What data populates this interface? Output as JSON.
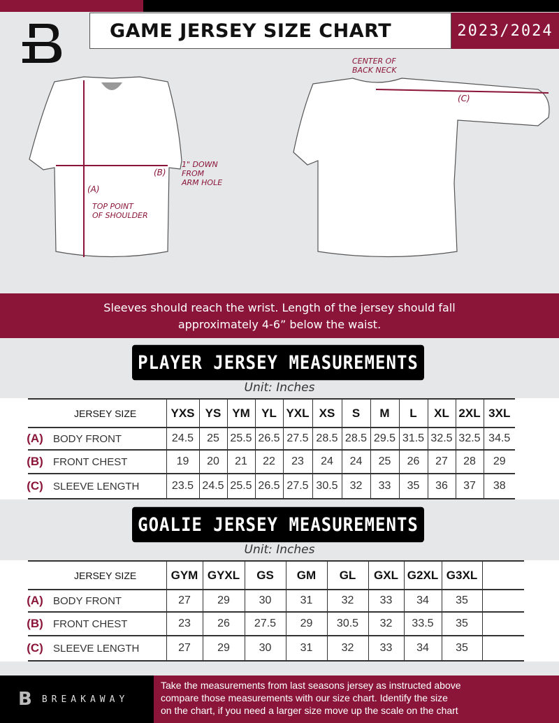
{
  "header": {
    "title": "GAME JERSEY SIZE CHART",
    "season": "2023/2024"
  },
  "diagram": {
    "center_back_neck": [
      "CENTER OF",
      "BACK NECK"
    ],
    "down_from_armhole": [
      "1\" DOWN",
      "FROM",
      "ARM HOLE"
    ],
    "top_point_shoulder": [
      "TOP POINT",
      "OF SHOULDER"
    ],
    "label_a": "(A)",
    "label_b": "(B)",
    "label_c": "(C)"
  },
  "band_text": [
    "Sleeves should reach the wrist. Length of the jersey should fall",
    "approximately 4-6” below the waist."
  ],
  "player": {
    "title": "PLAYER JERSEY MEASUREMENTS",
    "unit": "Unit: Inches",
    "size_label": "JERSEY SIZE",
    "sizes": [
      "YXS",
      "YS",
      "YM",
      "YL",
      "YXL",
      "XS",
      "S",
      "M",
      "L",
      "XL",
      "2XL",
      "3XL"
    ],
    "rows": [
      {
        "code": "(A)",
        "name": "BODY FRONT",
        "values": [
          "24.5",
          "25",
          "25.5",
          "26.5",
          "27.5",
          "28.5",
          "28.5",
          "29.5",
          "31.5",
          "32.5",
          "32.5",
          "34.5"
        ]
      },
      {
        "code": "(B)",
        "name": "FRONT CHEST",
        "values": [
          "19",
          "20",
          "21",
          "22",
          "23",
          "24",
          "24",
          "25",
          "26",
          "27",
          "28",
          "29"
        ]
      },
      {
        "code": "(C)",
        "name": "SLEEVE LENGTH",
        "values": [
          "23.5",
          "24.5",
          "25.5",
          "26.5",
          "27.5",
          "30.5",
          "32",
          "33",
          "35",
          "36",
          "37",
          "38"
        ]
      }
    ]
  },
  "goalie": {
    "title": "GOALIE JERSEY MEASUREMENTS",
    "unit": "Unit: Inches",
    "size_label": "JERSEY SIZE",
    "sizes": [
      "GYM",
      "GYXL",
      "GS",
      "GM",
      "GL",
      "GXL",
      "G2XL",
      "G3XL",
      ""
    ],
    "rows": [
      {
        "code": "(A)",
        "name": "BODY FRONT",
        "values": [
          "27",
          "29",
          "30",
          "31",
          "32",
          "33",
          "34",
          "35",
          ""
        ]
      },
      {
        "code": "(B)",
        "name": "FRONT CHEST",
        "values": [
          "23",
          "26",
          "27.5",
          "29",
          "30.5",
          "32",
          "33.5",
          "35",
          ""
        ]
      },
      {
        "code": "(C)",
        "name": "SLEEVE LENGTH",
        "values": [
          "27",
          "29",
          "30",
          "31",
          "32",
          "33",
          "34",
          "35",
          ""
        ]
      }
    ]
  },
  "footer": {
    "brand": "BREAKAWAY",
    "logo_letter": "B",
    "text": [
      "Take the measurements from last seasons jersey as instructed above",
      "compare those measurements  with our size chart. Identify the size",
      "on the chart, if you need a larger size move up the scale on the chart"
    ]
  },
  "colors": {
    "accent": "#8a1538",
    "background": "#e6e7e9",
    "dark": "#000000"
  }
}
